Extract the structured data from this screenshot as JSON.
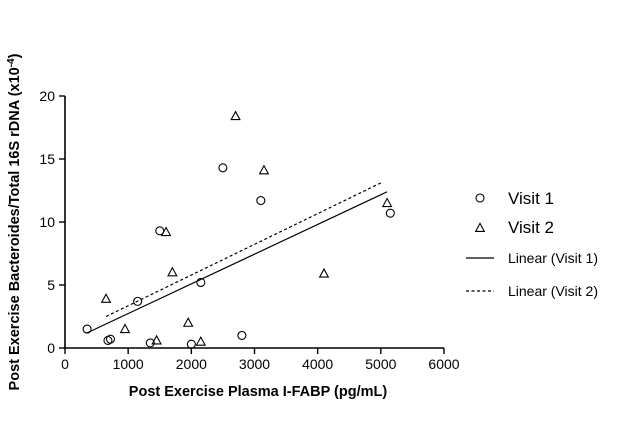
{
  "chart_data": {
    "type": "scatter",
    "xlabel": "Post Exercise Plasma I-FABP (pg/mL)",
    "ylabel_main": "Post Exercise Bacteroides/Total 16S rDNA (x10",
    "ylabel_exp": "-4",
    "ylabel_close": ")",
    "xlim": [
      0,
      6000
    ],
    "ylim": [
      0,
      20
    ],
    "xticks": [
      0,
      1000,
      2000,
      3000,
      4000,
      5000,
      6000
    ],
    "yticks": [
      0,
      5,
      10,
      15,
      20
    ],
    "grid": false,
    "legend_position": "right",
    "series": [
      {
        "name": "Visit 1",
        "marker": "circle",
        "points": [
          [
            350,
            1.5
          ],
          [
            680,
            0.6
          ],
          [
            720,
            0.7
          ],
          [
            1150,
            3.7
          ],
          [
            1350,
            0.4
          ],
          [
            1500,
            9.3
          ],
          [
            2000,
            0.3
          ],
          [
            2150,
            5.2
          ],
          [
            2500,
            14.3
          ],
          [
            2800,
            1.0
          ],
          [
            3100,
            11.7
          ],
          [
            5150,
            10.7
          ]
        ]
      },
      {
        "name": "Visit 2",
        "marker": "triangle",
        "points": [
          [
            650,
            3.9
          ],
          [
            950,
            1.5
          ],
          [
            1450,
            0.6
          ],
          [
            1600,
            9.2
          ],
          [
            1700,
            6.0
          ],
          [
            1950,
            2.0
          ],
          [
            2150,
            0.5
          ],
          [
            2700,
            18.4
          ],
          [
            3150,
            14.1
          ],
          [
            4100,
            5.9
          ],
          [
            5100,
            11.5
          ]
        ]
      },
      {
        "name": "Linear (Visit 1)",
        "type": "line",
        "style": "solid",
        "x": [
          350,
          5100
        ],
        "y": [
          1.2,
          12.4
        ]
      },
      {
        "name": "Linear (Visit 2)",
        "type": "line",
        "style": "dashed",
        "x": [
          650,
          5000
        ],
        "y": [
          2.5,
          13.1
        ]
      }
    ]
  }
}
